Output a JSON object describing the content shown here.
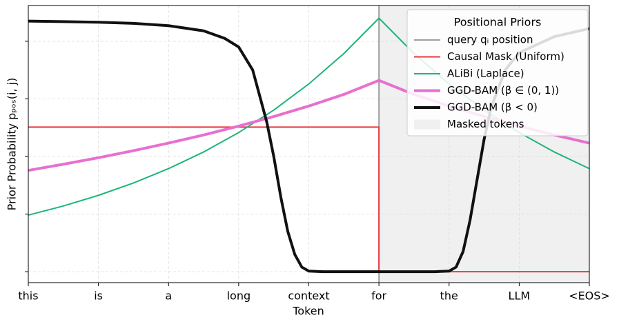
{
  "chart_data": {
    "type": "line",
    "x_label": "Token",
    "y_label": "Prior Probability pₚₒₛ(i, j)",
    "xlim": [
      0,
      8
    ],
    "xticks": [
      {
        "value": 0,
        "label": "this"
      },
      {
        "value": 1,
        "label": "is"
      },
      {
        "value": 2,
        "label": "a"
      },
      {
        "value": 3,
        "label": "long"
      },
      {
        "value": 4,
        "label": "context"
      },
      {
        "value": 5,
        "label": "for"
      },
      {
        "value": 6,
        "label": "the"
      },
      {
        "value": 7,
        "label": "LLM"
      },
      {
        "value": 8,
        "label": "<EOS>"
      }
    ],
    "ylim": [
      -0.19,
      4.62
    ],
    "yticks": [
      0,
      1,
      2,
      3,
      4
    ],
    "ytick_labels": false,
    "grid": true,
    "legend_title": "Positional Priors",
    "legend_position": "upper right",
    "masked": {
      "name": "Masked tokens",
      "xlim": [
        5,
        8
      ],
      "color": "#f0f0f0"
    },
    "query_line": {
      "name": "query qᵢ position",
      "x": 5,
      "color": "#808080"
    },
    "series": [
      {
        "name": "Causal Mask (Uniform)",
        "color": "#e8383d",
        "width": 2,
        "x": [
          0,
          5,
          5,
          8
        ],
        "values": [
          2.51,
          2.51,
          0,
          0
        ]
      },
      {
        "name": "ALiBi (Laplace)",
        "color": "#1db577",
        "width": 2,
        "x": [
          0,
          0.5,
          1,
          1.5,
          2,
          2.5,
          3,
          3.5,
          4,
          4.5,
          5,
          5.5,
          6,
          6.5,
          7,
          7.5,
          8
        ],
        "values": [
          0.982,
          1.14,
          1.325,
          1.54,
          1.789,
          2.078,
          2.415,
          2.805,
          3.259,
          3.787,
          4.4,
          3.787,
          3.259,
          2.805,
          2.415,
          2.078,
          1.789
        ]
      },
      {
        "name": "GGD-BAM (β ∈ (0, 1))",
        "color": "#e86fd0",
        "width": 4,
        "x": [
          0,
          0.5,
          1,
          1.5,
          2,
          2.5,
          3,
          3.5,
          4,
          4.5,
          5,
          5.5,
          6,
          6.5,
          7,
          7.5,
          8
        ],
        "values": [
          1.758,
          1.865,
          1.978,
          2.101,
          2.232,
          2.373,
          2.527,
          2.693,
          2.875,
          3.077,
          3.32,
          3.077,
          2.875,
          2.693,
          2.527,
          2.373,
          2.232
        ]
      },
      {
        "name": "GGD-BAM (β < 0)",
        "color": "#111111",
        "width": 4,
        "x": [
          0,
          0.5,
          1,
          1.5,
          2,
          2.5,
          2.8,
          3,
          3.2,
          3.4,
          3.5,
          3.6,
          3.7,
          3.8,
          3.9,
          4,
          4.2,
          5,
          5.8,
          6,
          6.1,
          6.2,
          6.3,
          6.4,
          6.5,
          6.6,
          6.8,
          7,
          7.5,
          8
        ],
        "values": [
          4.35,
          4.34,
          4.33,
          4.31,
          4.27,
          4.18,
          4.05,
          3.9,
          3.5,
          2.6,
          2.0,
          1.3,
          0.7,
          0.3,
          0.08,
          0.01,
          0,
          0,
          0,
          0.01,
          0.08,
          0.35,
          0.9,
          1.6,
          2.3,
          2.85,
          3.5,
          3.8,
          4.08,
          4.22
        ]
      }
    ]
  }
}
